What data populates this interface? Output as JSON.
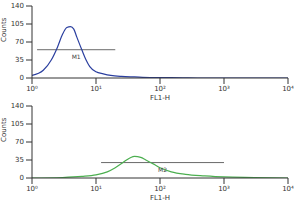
{
  "chart_data": [
    {
      "type": "line",
      "log": "x",
      "grid": false,
      "color": "#2b3f9f",
      "x_label": "FL1-H",
      "y_label": "Counts",
      "x": [
        1,
        1.5,
        2,
        2.5,
        3,
        3.5,
        4,
        4.5,
        5,
        6,
        7,
        8,
        10,
        13,
        17,
        25,
        40,
        70,
        150,
        500,
        2000,
        10000
      ],
      "values": [
        5,
        15,
        35,
        60,
        85,
        98,
        100,
        95,
        80,
        55,
        35,
        22,
        12,
        8,
        5,
        3,
        2,
        1,
        1,
        0,
        0,
        0
      ],
      "xlim": [
        1,
        10000
      ],
      "xticks": [
        {
          "value": 1,
          "label": "10⁰"
        },
        {
          "value": 10,
          "label": "10¹"
        },
        {
          "value": 100,
          "label": "10²"
        },
        {
          "value": 1000,
          "label": "10³"
        },
        {
          "value": 10000,
          "label": "10⁴"
        }
      ],
      "ylim": [
        0,
        140
      ],
      "yticks": [
        0,
        35,
        70,
        105,
        140
      ],
      "annotations": [
        {
          "text": "M1",
          "x": [
            1.2,
            20
          ],
          "y": 55
        }
      ]
    },
    {
      "type": "line",
      "log": "x",
      "grid": false,
      "color": "#4caf50",
      "x_label": "FL1-H",
      "y_label": "Counts",
      "x": [
        1,
        3,
        6,
        10,
        15,
        20,
        25,
        30,
        35,
        40,
        50,
        60,
        80,
        100,
        150,
        250,
        500,
        1000,
        3000,
        10000
      ],
      "values": [
        0,
        1,
        3,
        6,
        12,
        20,
        28,
        35,
        40,
        42,
        40,
        35,
        27,
        20,
        12,
        7,
        4,
        2,
        1,
        0
      ],
      "xlim": [
        1,
        10000
      ],
      "xticks": [
        {
          "value": 1,
          "label": "10⁰"
        },
        {
          "value": 10,
          "label": "10¹"
        },
        {
          "value": 100,
          "label": "10²"
        },
        {
          "value": 1000,
          "label": "10³"
        },
        {
          "value": 10000,
          "label": "10⁴"
        }
      ],
      "ylim": [
        0,
        140
      ],
      "yticks": [
        0,
        35,
        70,
        105,
        140
      ],
      "annotations": [
        {
          "text": "M2",
          "x": [
            12,
            1000
          ],
          "y": 30
        }
      ]
    }
  ]
}
